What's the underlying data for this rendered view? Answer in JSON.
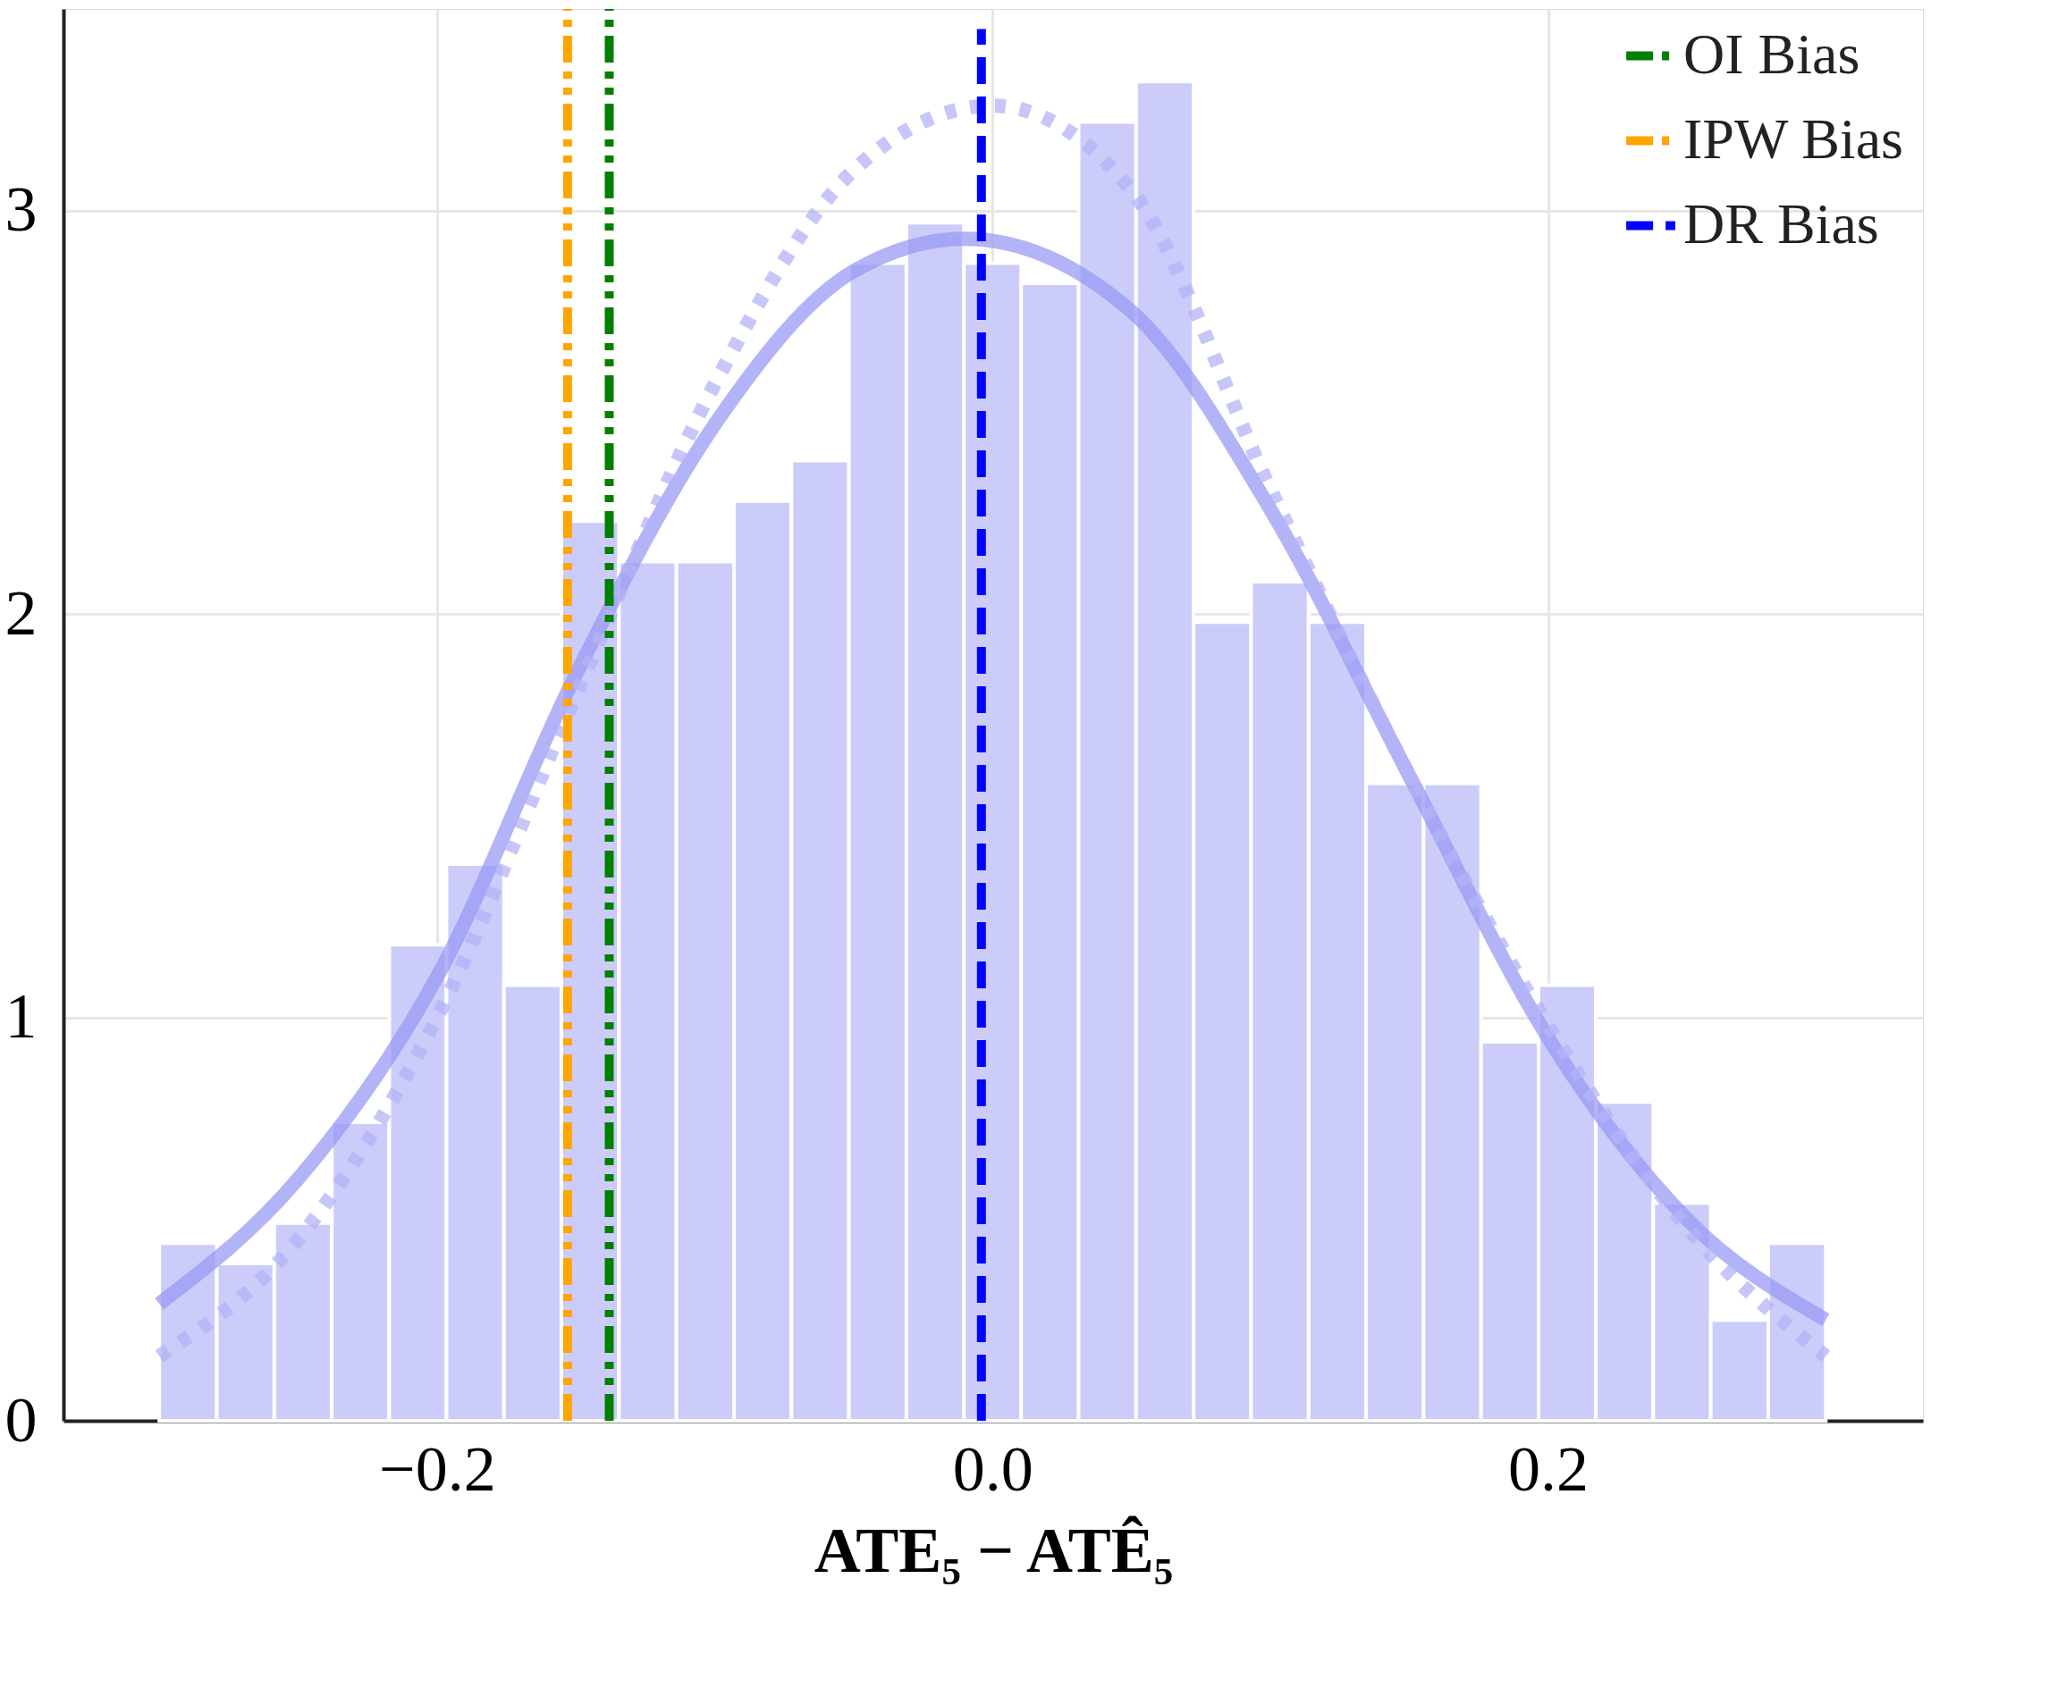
{
  "chart_data": {
    "type": "histogram",
    "xlabel": "ATE₅ − ATÊ₅",
    "bins": [
      -0.3,
      -0.2793,
      -0.2586,
      -0.2379,
      -0.2172,
      -0.1966,
      -0.1759,
      -0.1552,
      -0.1345,
      -0.1138,
      -0.0931,
      -0.0724,
      -0.0517,
      -0.031,
      -0.0103,
      0.0103,
      0.031,
      0.0517,
      0.0724,
      0.0931,
      0.1138,
      0.1345,
      0.1552,
      0.1759,
      0.1966,
      0.2172,
      0.2379,
      0.2586,
      0.2793,
      0.3
    ],
    "values": [
      0.44,
      0.39,
      0.49,
      0.74,
      1.18,
      1.38,
      1.08,
      2.23,
      2.13,
      2.13,
      2.28,
      2.38,
      2.87,
      2.97,
      2.87,
      2.82,
      3.22,
      3.32,
      1.98,
      2.08,
      1.98,
      1.58,
      1.58,
      0.94,
      1.08,
      0.79,
      0.54,
      0.25,
      0.44
    ],
    "color": "#ccccfa",
    "series": [
      {
        "type": "line",
        "line_style": "solid",
        "color": "#9a9af5",
        "x": [
          -0.3,
          -0.25,
          -0.2,
          -0.15,
          -0.1,
          -0.05,
          -0.01,
          0.05,
          0.1,
          0.15,
          0.2,
          0.25,
          0.3
        ],
        "values": [
          0.29,
          0.6,
          1.1,
          1.85,
          2.47,
          2.85,
          2.93,
          2.75,
          2.26,
          1.6,
          0.95,
          0.5,
          0.25
        ]
      },
      {
        "type": "line",
        "line_style": "dotted",
        "color": "#b3b3f7",
        "x": [
          -0.3,
          -0.25,
          -0.2,
          -0.15,
          -0.1,
          -0.05,
          0.0,
          0.05,
          0.1,
          0.15,
          0.2,
          0.25,
          0.3
        ],
        "values": [
          0.16,
          0.45,
          1.0,
          1.8,
          2.57,
          3.1,
          3.26,
          3.05,
          2.31,
          1.6,
          0.98,
          0.48,
          0.16
        ]
      },
      {
        "type": "line",
        "name": "OI Bias",
        "line_style": "dashdotdot",
        "color": "#008000",
        "x": [
          -0.138,
          -0.138
        ],
        "values": [
          0,
          3.5
        ]
      },
      {
        "type": "line",
        "name": "IPW Bias",
        "line_style": "dashdotdot",
        "color": "#ffa500",
        "x": [
          -0.153,
          -0.153
        ],
        "values": [
          0,
          3.5
        ]
      },
      {
        "type": "line",
        "name": "DR Bias",
        "line_style": "dashed",
        "color": "#0000ff",
        "x": [
          -0.004,
          -0.004
        ],
        "values": [
          0,
          3.45
        ]
      }
    ],
    "xlim": [
      -0.3345,
      0.335
    ],
    "ylim": [
      0,
      3.5
    ],
    "xticks": [
      {
        "value": -0.2,
        "label": "−0.2"
      },
      {
        "value": 0.0,
        "label": "0.0"
      },
      {
        "value": 0.2,
        "label": "0.2"
      }
    ],
    "yticks": [
      0,
      1,
      2,
      3
    ],
    "grid": true,
    "legend": "top right"
  }
}
